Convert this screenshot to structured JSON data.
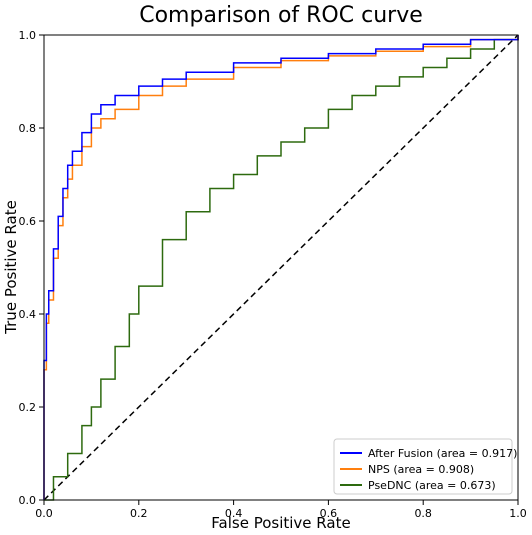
{
  "chart_data": {
    "type": "line",
    "title": "Comparison of ROC curve",
    "xlabel": "False Positive Rate",
    "ylabel": "True Positive Rate",
    "xlim": [
      0.0,
      1.0
    ],
    "ylim": [
      0.0,
      1.0
    ],
    "grid": false,
    "legend_position": "lower-right",
    "x_ticks": [
      "0.0",
      "0.2",
      "0.4",
      "0.6",
      "0.8",
      "1.0"
    ],
    "y_ticks": [
      "0.0",
      "0.2",
      "0.4",
      "0.6",
      "0.8",
      "1.0"
    ],
    "series": [
      {
        "name": "After Fusion (area = 0.917)",
        "color": "#0000ff",
        "x": [
          0.0,
          0.0,
          0.005,
          0.01,
          0.02,
          0.03,
          0.04,
          0.05,
          0.06,
          0.08,
          0.1,
          0.12,
          0.15,
          0.2,
          0.25,
          0.3,
          0.4,
          0.5,
          0.6,
          0.7,
          0.8,
          0.9,
          1.0
        ],
        "y": [
          0.0,
          0.3,
          0.4,
          0.45,
          0.54,
          0.61,
          0.67,
          0.72,
          0.75,
          0.79,
          0.83,
          0.85,
          0.87,
          0.89,
          0.905,
          0.92,
          0.94,
          0.95,
          0.96,
          0.97,
          0.98,
          0.99,
          1.0
        ]
      },
      {
        "name": "NPS (area = 0.908)",
        "color": "#ff7f0e",
        "x": [
          0.0,
          0.0,
          0.005,
          0.01,
          0.02,
          0.03,
          0.04,
          0.05,
          0.06,
          0.08,
          0.1,
          0.12,
          0.15,
          0.2,
          0.25,
          0.3,
          0.4,
          0.5,
          0.6,
          0.7,
          0.8,
          0.9,
          1.0
        ],
        "y": [
          0.0,
          0.28,
          0.38,
          0.43,
          0.52,
          0.59,
          0.65,
          0.69,
          0.72,
          0.76,
          0.8,
          0.82,
          0.84,
          0.87,
          0.89,
          0.905,
          0.93,
          0.945,
          0.955,
          0.965,
          0.975,
          0.99,
          1.0
        ]
      },
      {
        "name": "PseDNC (area = 0.673)",
        "color": "#2d6a0f",
        "x": [
          0.0,
          0.02,
          0.05,
          0.08,
          0.1,
          0.12,
          0.15,
          0.18,
          0.2,
          0.25,
          0.3,
          0.35,
          0.4,
          0.45,
          0.5,
          0.55,
          0.6,
          0.65,
          0.7,
          0.75,
          0.8,
          0.85,
          0.9,
          0.95,
          1.0
        ],
        "y": [
          0.0,
          0.05,
          0.1,
          0.16,
          0.2,
          0.26,
          0.33,
          0.4,
          0.46,
          0.56,
          0.62,
          0.67,
          0.7,
          0.74,
          0.77,
          0.8,
          0.84,
          0.87,
          0.89,
          0.91,
          0.93,
          0.95,
          0.97,
          0.99,
          1.0
        ]
      },
      {
        "name": "",
        "color": "#000000",
        "dashed": true,
        "x": [
          0.0,
          1.0
        ],
        "y": [
          0.0,
          1.0
        ]
      }
    ],
    "legend": [
      {
        "label": "After Fusion (area = 0.917)",
        "color": "#0000ff"
      },
      {
        "label": "NPS (area = 0.908)",
        "color": "#ff7f0e"
      },
      {
        "label": "PseDNC (area = 0.673)",
        "color": "#2d6a0f"
      }
    ]
  }
}
